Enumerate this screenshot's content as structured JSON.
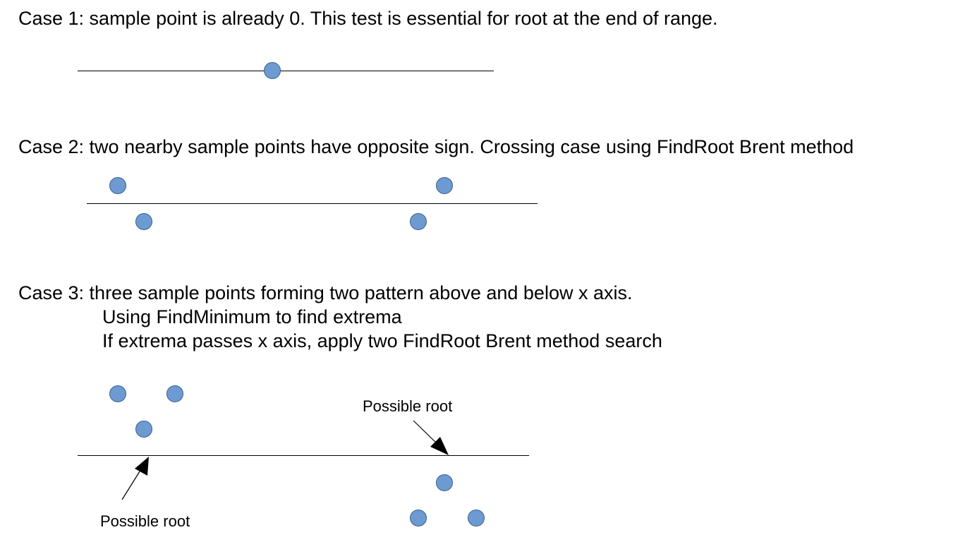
{
  "case1": {
    "text": "Case 1: sample point is already 0. This test is essential for root at the end of range."
  },
  "case2": {
    "text": "Case 2: two nearby sample points have opposite sign. Crossing case using FindRoot Brent method"
  },
  "case3": {
    "text": "Case 3: three sample points forming two pattern above and below x axis.",
    "line2": "Using FindMinimum to find extrema",
    "line3": "If extrema passes x axis, apply two FindRoot Brent method search",
    "annotation_right": "Possible root",
    "annotation_left": "Possible root"
  },
  "colors": {
    "point_fill": "#6d9bd1",
    "point_stroke": "#3a5f8f",
    "axis": "#000000"
  }
}
